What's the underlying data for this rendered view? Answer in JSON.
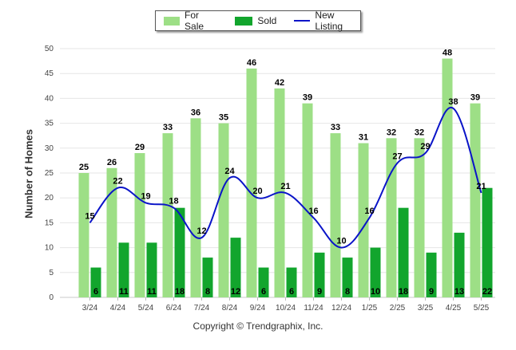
{
  "chart_data": {
    "type": "bar",
    "categories": [
      "3/24",
      "4/24",
      "5/24",
      "6/24",
      "7/24",
      "8/24",
      "9/24",
      "10/24",
      "11/24",
      "12/24",
      "1/25",
      "2/25",
      "3/25",
      "4/25",
      "5/25"
    ],
    "series": [
      {
        "name": "For Sale",
        "type": "bar",
        "color": "#9ddf86",
        "values": [
          25,
          26,
          29,
          33,
          36,
          35,
          46,
          42,
          39,
          33,
          31,
          32,
          32,
          48,
          39
        ]
      },
      {
        "name": "Sold",
        "type": "bar",
        "color": "#12a52d",
        "values": [
          6,
          11,
          11,
          18,
          8,
          12,
          6,
          6,
          9,
          8,
          10,
          18,
          9,
          13,
          22
        ]
      },
      {
        "name": "New Listing",
        "type": "line",
        "color": "#0a14c8",
        "values": [
          15,
          22,
          19,
          18,
          12,
          24,
          20,
          21,
          16,
          10,
          16,
          27,
          29,
          38,
          21
        ]
      }
    ],
    "ylabel": "Number of Homes",
    "ylim": [
      0,
      50
    ],
    "yticks": [
      0,
      5,
      10,
      15,
      20,
      25,
      30,
      35,
      40,
      45,
      50
    ],
    "grid": true,
    "legend": "top-center",
    "footer": "Copyright © Trendgraphix, Inc."
  }
}
